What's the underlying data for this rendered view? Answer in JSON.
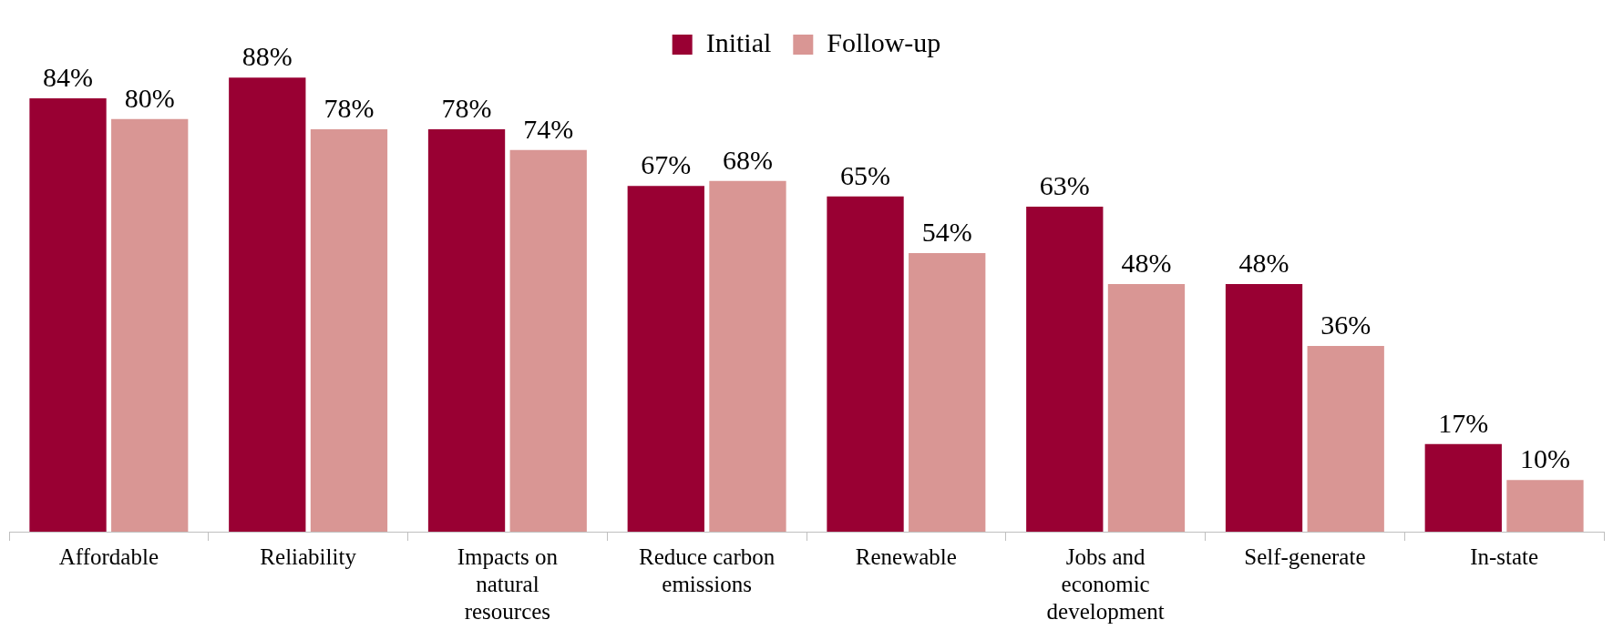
{
  "chart_data": {
    "type": "bar",
    "categories": [
      "Affordable",
      "Reliability",
      "Impacts on natural resources",
      "Reduce carbon emissions",
      "Renewable",
      "Jobs and economic development",
      "Self-generate",
      "In-state"
    ],
    "series": [
      {
        "name": "Initial",
        "color": "#990033",
        "values": [
          84,
          88,
          78,
          67,
          65,
          63,
          48,
          17
        ],
        "value_labels": [
          "84%",
          "88%",
          "78%",
          "67%",
          "65%",
          "63%",
          "48%",
          "17%"
        ]
      },
      {
        "name": "Follow-up",
        "color": "#d99694",
        "values": [
          80,
          78,
          74,
          68,
          54,
          48,
          36,
          10
        ],
        "value_labels": [
          "80%",
          "78%",
          "74%",
          "68%",
          "54%",
          "48%",
          "36%",
          "10%"
        ]
      }
    ],
    "legend": "top"
  }
}
